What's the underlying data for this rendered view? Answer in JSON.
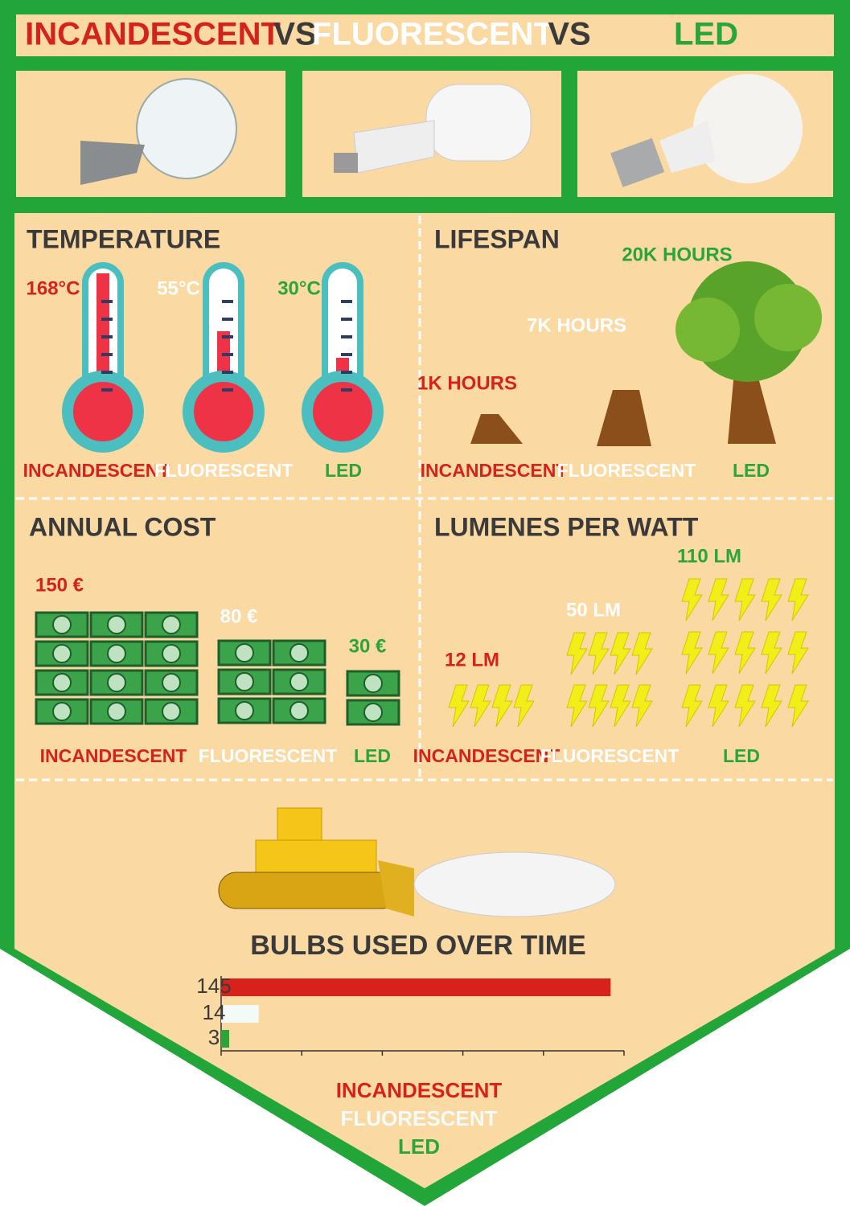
{
  "header": {
    "title_parts": [
      "INCANDESCENT",
      "VS",
      "FLUORESCENT",
      "VS",
      "LED"
    ]
  },
  "temperature": {
    "title": "TEMPERATURE",
    "items": [
      {
        "value": "168°C",
        "name": "INCANDESCENT"
      },
      {
        "value": "55°C",
        "name": "FLUORESCENT"
      },
      {
        "value": "30°C",
        "name": "LED"
      }
    ]
  },
  "lifespan": {
    "title": "LIFESPAN",
    "items": [
      {
        "value": "1K HOURS",
        "name": "INCANDESCENT"
      },
      {
        "value": "7K HOURS",
        "name": "FLUORESCENT"
      },
      {
        "value": "20K HOURS",
        "name": "LED"
      }
    ]
  },
  "annual_cost": {
    "title": "ANNUAL COST",
    "items": [
      {
        "value": "150 €",
        "name": "INCANDESCENT"
      },
      {
        "value": "80 €",
        "name": "FLUORESCENT"
      },
      {
        "value": "30 €",
        "name": "LED"
      }
    ]
  },
  "lumens": {
    "title": "LUMENES PER WATT",
    "items": [
      {
        "value": "12 LM",
        "name": "INCANDESCENT"
      },
      {
        "value": "50 LM",
        "name": "FLUORESCENT"
      },
      {
        "value": "110 LM",
        "name": "LED"
      }
    ]
  },
  "chart_data": {
    "type": "hbar",
    "title": "BULBS USED OVER TIME",
    "categories": [
      "INCANDESCENT",
      "FLUORESCENT",
      "LED"
    ],
    "values": [
      145,
      14,
      3
    ],
    "colors": [
      "#d9211c",
      "#f2fbf8",
      "#2aa53a"
    ],
    "xlim": [
      0,
      150
    ],
    "xticks": [
      0,
      30,
      60,
      90,
      120,
      150
    ]
  }
}
